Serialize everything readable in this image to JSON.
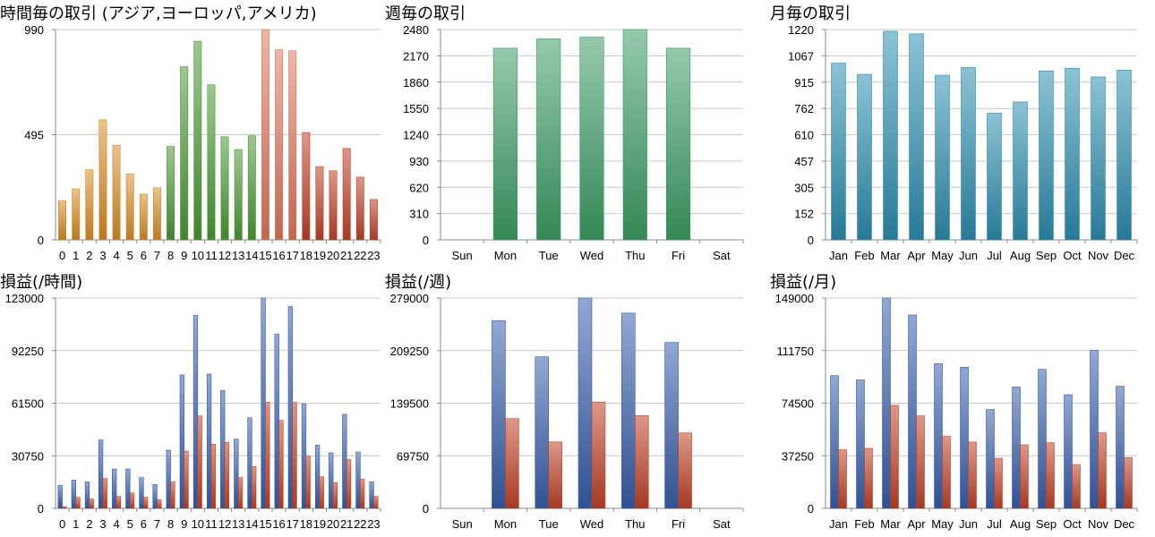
{
  "chart_data": [
    {
      "type": "bar",
      "title": "時間毎の取引 (アジア,ヨーロッパ,アメリカ)",
      "categories": [
        "0",
        "1",
        "2",
        "3",
        "4",
        "5",
        "6",
        "7",
        "8",
        "9",
        "10",
        "11",
        "12",
        "13",
        "14",
        "15",
        "16",
        "17",
        "18",
        "19",
        "20",
        "21",
        "22",
        "23"
      ],
      "series": [
        {
          "values": [
            185,
            240,
            330,
            565,
            445,
            310,
            215,
            245,
            440,
            815,
            935,
            730,
            485,
            425,
            490,
            990,
            895,
            890,
            505,
            345,
            325,
            430,
            295,
            190
          ]
        }
      ],
      "category_colors": [
        "#d9902e",
        "#d9902e",
        "#d9902e",
        "#d9902e",
        "#d9902e",
        "#d9902e",
        "#d9902e",
        "#d9902e",
        "#4f9a3a",
        "#4f9a3a",
        "#4f9a3a",
        "#4f9a3a",
        "#4f9a3a",
        "#4f9a3a",
        "#4f9a3a",
        "#e07a62",
        "#e07a62",
        "#e07a62",
        "#c0442b",
        "#c0442b",
        "#c0442b",
        "#c0442b",
        "#c0442b",
        "#c0442b"
      ],
      "yticks": [
        "0",
        "495",
        "990"
      ],
      "ylim": [
        0,
        990
      ],
      "grid": true
    },
    {
      "type": "bar",
      "title": "週毎の取引",
      "categories": [
        "Sun",
        "Mon",
        "Tue",
        "Wed",
        "Thu",
        "Fri",
        "Sat"
      ],
      "series": [
        {
          "values": [
            0,
            2260,
            2370,
            2390,
            2480,
            2260,
            0
          ]
        }
      ],
      "color": "#3e9f66",
      "yticks": [
        "0",
        "310",
        "620",
        "930",
        "1240",
        "1550",
        "1860",
        "2170",
        "2480"
      ],
      "ylim": [
        0,
        2480
      ],
      "grid": true
    },
    {
      "type": "bar",
      "title": "月毎の取引",
      "categories": [
        "Jan",
        "Feb",
        "Mar",
        "Apr",
        "May",
        "Jun",
        "Jul",
        "Aug",
        "Sep",
        "Oct",
        "Nov",
        "Dec"
      ],
      "series": [
        {
          "values": [
            1025,
            960,
            1210,
            1195,
            955,
            1000,
            735,
            800,
            980,
            995,
            945,
            985
          ]
        }
      ],
      "color": "#2f90b0",
      "yticks": [
        "0",
        "152",
        "305",
        "457",
        "610",
        "762",
        "915",
        "1067",
        "1220"
      ],
      "ylim": [
        0,
        1220
      ],
      "grid": true
    },
    {
      "type": "bar",
      "title": "損益(/時間)",
      "categories": [
        "0",
        "1",
        "2",
        "3",
        "4",
        "5",
        "6",
        "7",
        "8",
        "9",
        "10",
        "11",
        "12",
        "13",
        "14",
        "15",
        "16",
        "17",
        "18",
        "19",
        "20",
        "21",
        "22",
        "23"
      ],
      "series": [
        {
          "values": [
            13500,
            16500,
            15500,
            40000,
            23000,
            23000,
            18000,
            14000,
            34000,
            78000,
            113000,
            78500,
            69000,
            40500,
            53000,
            123000,
            102000,
            118000,
            61000,
            37000,
            32500,
            55000,
            33000,
            15500
          ]
        },
        {
          "values": [
            1000,
            6500,
            5500,
            17500,
            7000,
            9000,
            6500,
            5000,
            15500,
            33500,
            54000,
            37500,
            38500,
            18000,
            24500,
            62000,
            51500,
            62000,
            30500,
            18500,
            15000,
            28500,
            17000,
            7000
          ]
        }
      ],
      "colors": [
        "#3a5fac",
        "#c0442b"
      ],
      "yticks": [
        "0",
        "30750",
        "61500",
        "92250",
        "123000"
      ],
      "ylim": [
        0,
        123000
      ],
      "grid": true
    },
    {
      "type": "bar",
      "title": "損益(/週)",
      "categories": [
        "Sun",
        "Mon",
        "Tue",
        "Wed",
        "Thu",
        "Fri",
        "Sat"
      ],
      "series": [
        {
          "values": [
            0,
            249000,
            201000,
            279000,
            259000,
            220000,
            0
          ]
        },
        {
          "values": [
            0,
            119000,
            88000,
            141000,
            123000,
            100000,
            0
          ]
        }
      ],
      "colors": [
        "#3a5fac",
        "#c0442b"
      ],
      "yticks": [
        "0",
        "69750",
        "139500",
        "209250",
        "279000"
      ],
      "ylim": [
        0,
        279000
      ],
      "grid": true
    },
    {
      "type": "bar",
      "title": "損益(/月)",
      "categories": [
        "Jan",
        "Feb",
        "Mar",
        "Apr",
        "May",
        "Jun",
        "Jul",
        "Aug",
        "Sep",
        "Oct",
        "Nov",
        "Dec"
      ],
      "series": [
        {
          "values": [
            94000,
            91000,
            149000,
            137000,
            102500,
            100000,
            70000,
            86000,
            98500,
            80500,
            112000,
            86500
          ]
        },
        {
          "values": [
            41500,
            42500,
            73000,
            65500,
            51000,
            47000,
            35500,
            45000,
            46500,
            31000,
            53500,
            36000
          ]
        }
      ],
      "colors": [
        "#3a5fac",
        "#c0442b"
      ],
      "yticks": [
        "0",
        "37250",
        "74500",
        "111750",
        "149000"
      ],
      "ylim": [
        0,
        149000
      ],
      "grid": true
    }
  ]
}
